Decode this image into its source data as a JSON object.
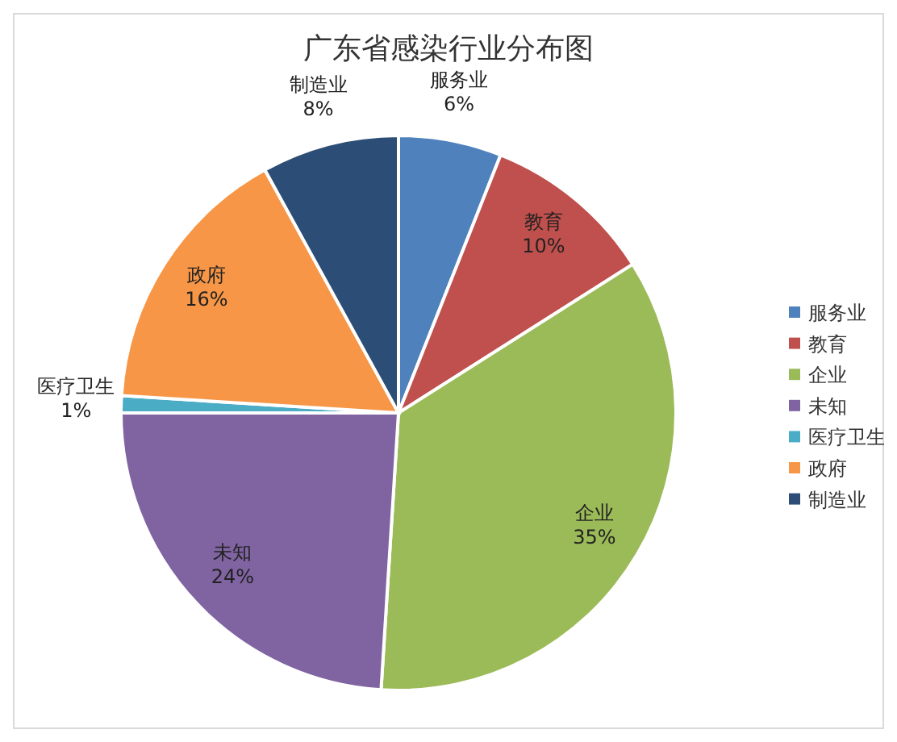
{
  "chart_data": {
    "type": "pie",
    "title": "广东省感染行业分布图",
    "categories": [
      "服务业",
      "教育",
      "企业",
      "未知",
      "医疗卫生",
      "政府",
      "制造业"
    ],
    "values": [
      6,
      10,
      35,
      24,
      1,
      16,
      8
    ],
    "colors": [
      "#4f81bd",
      "#c0504d",
      "#9bbb59",
      "#8064a2",
      "#4bacc6",
      "#f79646",
      "#2c4d75"
    ],
    "value_labels": [
      "6%",
      "10%",
      "35%",
      "24%",
      "1%",
      "16%",
      "8%"
    ],
    "legend": "right"
  }
}
